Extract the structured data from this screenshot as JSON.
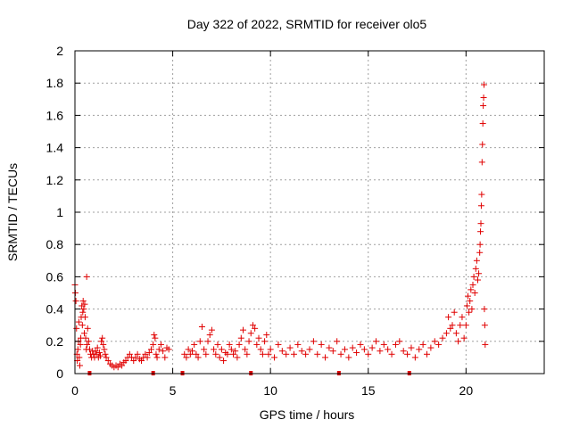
{
  "chart_data": {
    "type": "scatter",
    "title": "Day 322 of 2022, SRMTID for receiver olo5",
    "xlabel": "GPS time / hours",
    "ylabel": "SRMTID / TECUs",
    "xlim": [
      0,
      24
    ],
    "ylim": [
      0,
      2
    ],
    "x_ticks": [
      0,
      5,
      10,
      15,
      20
    ],
    "y_ticks": [
      0,
      0.2,
      0.4,
      0.6,
      0.8,
      1,
      1.2,
      1.4,
      1.6,
      1.8,
      2
    ],
    "grid": true,
    "marker": "+",
    "series_color": "#e00000",
    "series": [
      {
        "name": "SRMTID",
        "points": [
          [
            0.0,
            0.55
          ],
          [
            0.02,
            0.5
          ],
          [
            0.05,
            0.45
          ],
          [
            0.08,
            0.28
          ],
          [
            0.1,
            0.12
          ],
          [
            0.12,
            0.08
          ],
          [
            0.15,
            0.15
          ],
          [
            0.18,
            0.2
          ],
          [
            0.2,
            0.32
          ],
          [
            0.22,
            0.1
          ],
          [
            0.25,
            0.05
          ],
          [
            0.28,
            0.18
          ],
          [
            0.3,
            0.22
          ],
          [
            0.32,
            0.35
          ],
          [
            0.35,
            0.42
          ],
          [
            0.38,
            0.3
          ],
          [
            0.4,
            0.38
          ],
          [
            0.42,
            0.45
          ],
          [
            0.45,
            0.4
          ],
          [
            0.48,
            0.25
          ],
          [
            0.5,
            0.43
          ],
          [
            0.52,
            0.35
          ],
          [
            0.55,
            0.22
          ],
          [
            0.58,
            0.15
          ],
          [
            0.6,
            0.6
          ],
          [
            0.62,
            0.18
          ],
          [
            0.65,
            0.28
          ],
          [
            0.7,
            0.2
          ],
          [
            0.75,
            0.15
          ],
          [
            0.8,
            0.12
          ],
          [
            0.85,
            0.1
          ],
          [
            0.9,
            0.14
          ],
          [
            0.95,
            0.12
          ],
          [
            1.0,
            0.1
          ],
          [
            1.05,
            0.14
          ],
          [
            1.1,
            0.12
          ],
          [
            1.15,
            0.16
          ],
          [
            1.2,
            0.1
          ],
          [
            1.25,
            0.13
          ],
          [
            1.3,
            0.11
          ],
          [
            1.35,
            0.2
          ],
          [
            1.4,
            0.22
          ],
          [
            1.45,
            0.18
          ],
          [
            1.5,
            0.15
          ],
          [
            1.55,
            0.12
          ],
          [
            1.6,
            0.1
          ],
          [
            1.7,
            0.08
          ],
          [
            1.8,
            0.06
          ],
          [
            1.9,
            0.05
          ],
          [
            2.0,
            0.04
          ],
          [
            2.1,
            0.05
          ],
          [
            2.2,
            0.04
          ],
          [
            2.3,
            0.06
          ],
          [
            2.4,
            0.05
          ],
          [
            2.5,
            0.07
          ],
          [
            2.6,
            0.08
          ],
          [
            2.7,
            0.1
          ],
          [
            2.8,
            0.12
          ],
          [
            2.9,
            0.1
          ],
          [
            3.0,
            0.08
          ],
          [
            3.1,
            0.1
          ],
          [
            3.2,
            0.12
          ],
          [
            3.3,
            0.09
          ],
          [
            3.4,
            0.08
          ],
          [
            3.5,
            0.1
          ],
          [
            3.6,
            0.12
          ],
          [
            3.7,
            0.1
          ],
          [
            3.8,
            0.13
          ],
          [
            3.9,
            0.15
          ],
          [
            4.0,
            0.18
          ],
          [
            4.05,
            0.24
          ],
          [
            4.1,
            0.22
          ],
          [
            4.15,
            0.12
          ],
          [
            4.2,
            0.1
          ],
          [
            4.3,
            0.15
          ],
          [
            4.4,
            0.18
          ],
          [
            4.5,
            0.14
          ],
          [
            4.6,
            0.1
          ],
          [
            4.7,
            0.16
          ],
          [
            4.8,
            0.15
          ],
          [
            5.6,
            0.12
          ],
          [
            5.7,
            0.1
          ],
          [
            5.8,
            0.15
          ],
          [
            5.9,
            0.12
          ],
          [
            6.0,
            0.14
          ],
          [
            6.1,
            0.18
          ],
          [
            6.2,
            0.12
          ],
          [
            6.3,
            0.1
          ],
          [
            6.4,
            0.2
          ],
          [
            6.5,
            0.29
          ],
          [
            6.6,
            0.15
          ],
          [
            6.7,
            0.12
          ],
          [
            6.8,
            0.2
          ],
          [
            6.9,
            0.24
          ],
          [
            7.0,
            0.27
          ],
          [
            7.1,
            0.15
          ],
          [
            7.2,
            0.12
          ],
          [
            7.3,
            0.18
          ],
          [
            7.4,
            0.1
          ],
          [
            7.5,
            0.15
          ],
          [
            7.6,
            0.08
          ],
          [
            7.7,
            0.13
          ],
          [
            7.8,
            0.12
          ],
          [
            7.9,
            0.18
          ],
          [
            8.0,
            0.15
          ],
          [
            8.1,
            0.12
          ],
          [
            8.2,
            0.14
          ],
          [
            8.3,
            0.1
          ],
          [
            8.4,
            0.18
          ],
          [
            8.5,
            0.22
          ],
          [
            8.6,
            0.27
          ],
          [
            8.7,
            0.15
          ],
          [
            8.8,
            0.12
          ],
          [
            8.9,
            0.2
          ],
          [
            9.0,
            0.25
          ],
          [
            9.1,
            0.3
          ],
          [
            9.2,
            0.28
          ],
          [
            9.3,
            0.18
          ],
          [
            9.4,
            0.22
          ],
          [
            9.5,
            0.15
          ],
          [
            9.6,
            0.12
          ],
          [
            9.7,
            0.2
          ],
          [
            9.8,
            0.24
          ],
          [
            9.9,
            0.12
          ],
          [
            10.0,
            0.15
          ],
          [
            10.2,
            0.1
          ],
          [
            10.4,
            0.18
          ],
          [
            10.6,
            0.14
          ],
          [
            10.8,
            0.12
          ],
          [
            11.0,
            0.16
          ],
          [
            11.2,
            0.12
          ],
          [
            11.4,
            0.18
          ],
          [
            11.6,
            0.14
          ],
          [
            11.8,
            0.12
          ],
          [
            12.0,
            0.15
          ],
          [
            12.2,
            0.2
          ],
          [
            12.4,
            0.12
          ],
          [
            12.6,
            0.18
          ],
          [
            12.8,
            0.1
          ],
          [
            13.0,
            0.16
          ],
          [
            13.2,
            0.14
          ],
          [
            13.4,
            0.2
          ],
          [
            13.6,
            0.12
          ],
          [
            13.8,
            0.15
          ],
          [
            14.0,
            0.1
          ],
          [
            14.2,
            0.16
          ],
          [
            14.4,
            0.13
          ],
          [
            14.6,
            0.18
          ],
          [
            14.8,
            0.15
          ],
          [
            15.0,
            0.12
          ],
          [
            15.2,
            0.16
          ],
          [
            15.4,
            0.2
          ],
          [
            15.6,
            0.14
          ],
          [
            15.8,
            0.18
          ],
          [
            16.0,
            0.15
          ],
          [
            16.2,
            0.12
          ],
          [
            16.4,
            0.18
          ],
          [
            16.6,
            0.2
          ],
          [
            16.8,
            0.14
          ],
          [
            17.0,
            0.12
          ],
          [
            17.2,
            0.16
          ],
          [
            17.4,
            0.1
          ],
          [
            17.6,
            0.15
          ],
          [
            17.8,
            0.18
          ],
          [
            18.0,
            0.12
          ],
          [
            18.2,
            0.16
          ],
          [
            18.4,
            0.2
          ],
          [
            18.6,
            0.18
          ],
          [
            18.8,
            0.22
          ],
          [
            19.0,
            0.25
          ],
          [
            19.1,
            0.35
          ],
          [
            19.2,
            0.28
          ],
          [
            19.3,
            0.3
          ],
          [
            19.4,
            0.38
          ],
          [
            19.5,
            0.25
          ],
          [
            19.6,
            0.2
          ],
          [
            19.7,
            0.3
          ],
          [
            19.8,
            0.35
          ],
          [
            19.9,
            0.22
          ],
          [
            20.0,
            0.3
          ],
          [
            20.05,
            0.42
          ],
          [
            20.1,
            0.48
          ],
          [
            20.15,
            0.38
          ],
          [
            20.2,
            0.45
          ],
          [
            20.25,
            0.52
          ],
          [
            20.3,
            0.4
          ],
          [
            20.35,
            0.55
          ],
          [
            20.4,
            0.6
          ],
          [
            20.45,
            0.5
          ],
          [
            20.5,
            0.65
          ],
          [
            20.55,
            0.7
          ],
          [
            20.6,
            0.58
          ],
          [
            20.65,
            0.62
          ],
          [
            20.7,
            0.75
          ],
          [
            20.72,
            0.8
          ],
          [
            20.74,
            0.88
          ],
          [
            20.76,
            0.93
          ],
          [
            20.78,
            1.04
          ],
          [
            20.8,
            1.11
          ],
          [
            20.82,
            1.31
          ],
          [
            20.84,
            1.42
          ],
          [
            20.86,
            1.55
          ],
          [
            20.88,
            1.66
          ],
          [
            20.9,
            1.71
          ],
          [
            20.92,
            1.79
          ],
          [
            20.94,
            0.4
          ],
          [
            20.96,
            0.3
          ],
          [
            20.98,
            0.18
          ]
        ]
      }
    ],
    "gap_markers_x": [
      0.75,
      4.0,
      5.5,
      9.0,
      13.5,
      17.1
    ]
  }
}
